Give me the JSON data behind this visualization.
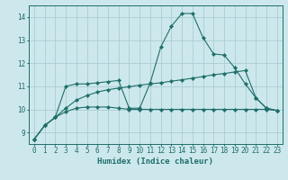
{
  "xlabel": "Humidex (Indice chaleur)",
  "background_color": "#cde8ec",
  "grid_color": "#aacdd4",
  "line_color": "#1e6e6a",
  "xlim": [
    -0.5,
    23.5
  ],
  "ylim": [
    8.5,
    14.5
  ],
  "yticks": [
    9,
    10,
    11,
    12,
    13,
    14
  ],
  "xticks": [
    0,
    1,
    2,
    3,
    4,
    5,
    6,
    7,
    8,
    9,
    10,
    11,
    12,
    13,
    14,
    15,
    16,
    17,
    18,
    19,
    20,
    21,
    22,
    23
  ],
  "s1_x": [
    0,
    1,
    2,
    3,
    4,
    5,
    6,
    7,
    8,
    9,
    10,
    11,
    12,
    13,
    14,
    15,
    16,
    17,
    18,
    19,
    20,
    21,
    22,
    23
  ],
  "s1_y": [
    8.7,
    9.3,
    9.65,
    9.9,
    10.05,
    10.1,
    10.1,
    10.1,
    10.05,
    10.0,
    10.0,
    10.0,
    10.0,
    10.0,
    10.0,
    10.0,
    10.0,
    10.0,
    10.0,
    10.0,
    10.0,
    10.0,
    10.0,
    9.95
  ],
  "s2_x": [
    0,
    1,
    2,
    3,
    4,
    5,
    6,
    7,
    8,
    9,
    10,
    11,
    12,
    13,
    14,
    15,
    16,
    17,
    18,
    19,
    20,
    21,
    22,
    23
  ],
  "s2_y": [
    8.7,
    9.3,
    9.65,
    10.05,
    10.4,
    10.6,
    10.75,
    10.85,
    10.92,
    10.98,
    11.05,
    11.1,
    11.15,
    11.22,
    11.28,
    11.35,
    11.42,
    11.5,
    11.55,
    11.62,
    11.68,
    10.5,
    10.05,
    9.95
  ],
  "s3_x": [
    0,
    1,
    2,
    3,
    4,
    5,
    6,
    7,
    8,
    9,
    10,
    11,
    12,
    13,
    14,
    15,
    16,
    17,
    18,
    19,
    20,
    21,
    22,
    23
  ],
  "s3_y": [
    8.7,
    9.3,
    9.65,
    11.0,
    11.1,
    11.1,
    11.15,
    11.2,
    11.25,
    10.05,
    10.05,
    11.15,
    12.7,
    13.6,
    14.15,
    14.15,
    13.1,
    12.4,
    12.35,
    11.8,
    11.1,
    10.5,
    10.05,
    9.95
  ]
}
